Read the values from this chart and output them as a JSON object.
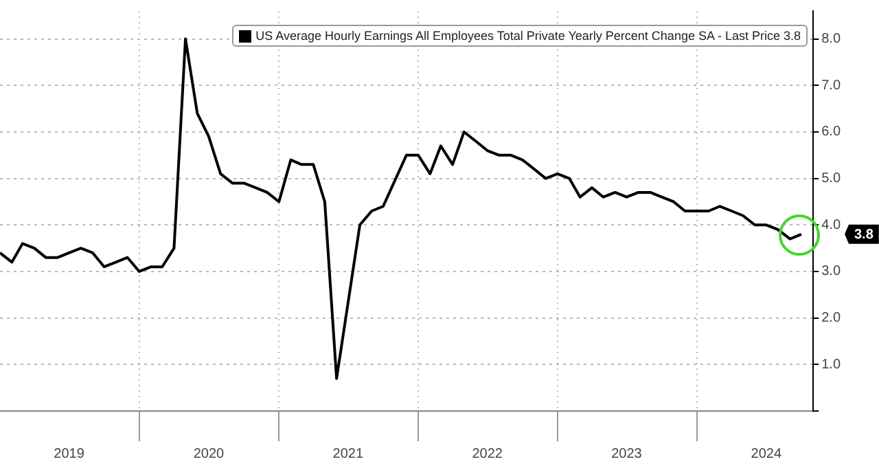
{
  "chart_data": {
    "type": "line",
    "x": [
      "2019-01",
      "2019-02",
      "2019-03",
      "2019-04",
      "2019-05",
      "2019-06",
      "2019-07",
      "2019-08",
      "2019-09",
      "2019-10",
      "2019-11",
      "2019-12",
      "2020-01",
      "2020-02",
      "2020-03",
      "2020-04",
      "2020-05",
      "2020-06",
      "2020-07",
      "2020-08",
      "2020-09",
      "2020-10",
      "2020-11",
      "2020-12",
      "2021-01",
      "2021-02",
      "2021-03",
      "2021-04",
      "2021-05",
      "2021-06",
      "2021-08",
      "2021-09",
      "2021-10",
      "2021-12",
      "2022-01",
      "2022-02",
      "2022-03",
      "2022-04",
      "2022-05",
      "2022-06",
      "2022-07",
      "2022-08",
      "2022-09",
      "2022-10",
      "2022-11",
      "2022-12",
      "2023-01",
      "2023-02",
      "2023-03",
      "2023-04",
      "2023-05",
      "2023-06",
      "2023-07",
      "2023-08",
      "2023-09",
      "2023-10",
      "2023-11",
      "2023-12",
      "2024-01",
      "2024-02",
      "2024-03",
      "2024-04",
      "2024-05",
      "2024-06",
      "2024-07",
      "2024-08",
      "2024-09",
      "2024-10"
    ],
    "series": [
      {
        "name": "US Average Hourly Earnings All Employees Total Private Yearly Percent Change SA - Last Price 3.8",
        "color": "#000000",
        "values": [
          3.4,
          3.2,
          3.6,
          3.5,
          3.3,
          3.3,
          3.4,
          3.5,
          3.4,
          3.1,
          3.2,
          3.3,
          3.0,
          3.1,
          3.1,
          3.5,
          8.0,
          6.4,
          5.9,
          5.1,
          4.9,
          4.9,
          4.8,
          4.7,
          4.5,
          5.4,
          5.3,
          5.3,
          4.5,
          0.7,
          4.0,
          4.3,
          4.4,
          5.5,
          5.5,
          5.1,
          5.7,
          5.3,
          6.0,
          5.8,
          5.6,
          5.5,
          5.5,
          5.4,
          5.2,
          5.0,
          5.1,
          5.0,
          4.6,
          4.8,
          4.6,
          4.7,
          4.6,
          4.7,
          4.7,
          4.6,
          4.5,
          4.3,
          4.3,
          4.3,
          4.4,
          4.3,
          4.2,
          4.0,
          4.0,
          3.9,
          3.7,
          3.8
        ]
      }
    ],
    "xlim": [
      "2019-01-01",
      "2024-11-01"
    ],
    "xticks": [
      {
        "value": "2019-07-01",
        "label": "2019"
      },
      {
        "value": "2020-01-01",
        "label": null
      },
      {
        "value": "2020-07-01",
        "label": "2020"
      },
      {
        "value": "2021-01-01",
        "label": null
      },
      {
        "value": "2021-07-01",
        "label": "2021"
      },
      {
        "value": "2022-01-01",
        "label": null
      },
      {
        "value": "2022-07-01",
        "label": "2022"
      },
      {
        "value": "2023-01-01",
        "label": null
      },
      {
        "value": "2023-07-01",
        "label": "2023"
      },
      {
        "value": "2024-01-01",
        "label": null
      },
      {
        "value": "2024-07-01",
        "label": "2024"
      }
    ],
    "ylim": [
      0,
      8.6
    ],
    "yticks": [
      {
        "value": 0,
        "label": null
      },
      {
        "value": 1,
        "label": "1.0"
      },
      {
        "value": 2,
        "label": "2.0"
      },
      {
        "value": 3,
        "label": "3.0"
      },
      {
        "value": 4,
        "label": "4.0"
      },
      {
        "value": 5,
        "label": "5.0"
      },
      {
        "value": 6,
        "label": "6.0"
      },
      {
        "value": 7,
        "label": "7.0"
      },
      {
        "value": 8,
        "label": "8.0"
      }
    ],
    "grid": true,
    "legend": "top right",
    "marker": "none",
    "line_style": "solid",
    "annotations": [
      "3.8"
    ]
  }
}
